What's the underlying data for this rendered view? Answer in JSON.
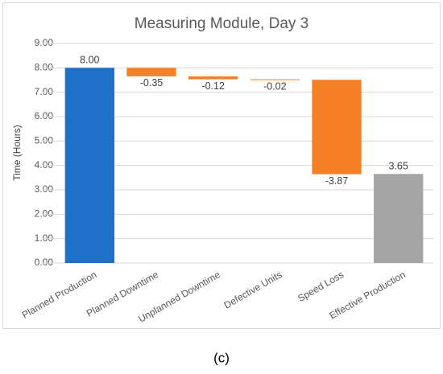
{
  "chart_data": {
    "type": "waterfall",
    "title": "Measuring Module, Day 3",
    "y_label": "Time (Hours)",
    "caption": "(c)",
    "categories": [
      "Planned Production",
      "Planned Downtime",
      "Unplanned Downtime",
      "Defective Units",
      "Speed Loss",
      "Effective Production"
    ],
    "values": [
      8.0,
      -0.35,
      -0.12,
      -0.02,
      -3.87,
      3.65
    ],
    "value_labels": [
      "8.00",
      "-0.35",
      "-0.12",
      "-0.02",
      "-3.87",
      "3.65"
    ],
    "colors": [
      "#1f70c8",
      "#f58025",
      "#f58025",
      "#f58025",
      "#f58025",
      "#a5a5a5"
    ],
    "ylim": [
      0,
      9
    ],
    "yticks": [
      {
        "value": 0,
        "label": "0.00"
      },
      {
        "value": 1,
        "label": "1.00"
      },
      {
        "value": 2,
        "label": "2.00"
      },
      {
        "value": 3,
        "label": "3.00"
      },
      {
        "value": 4,
        "label": "4.00"
      },
      {
        "value": 5,
        "label": "5.00"
      },
      {
        "value": 6,
        "label": "6.00"
      },
      {
        "value": 7,
        "label": "7.00"
      },
      {
        "value": 8,
        "label": "8.00"
      },
      {
        "value": 9,
        "label": "9.00"
      }
    ],
    "grid": true
  }
}
